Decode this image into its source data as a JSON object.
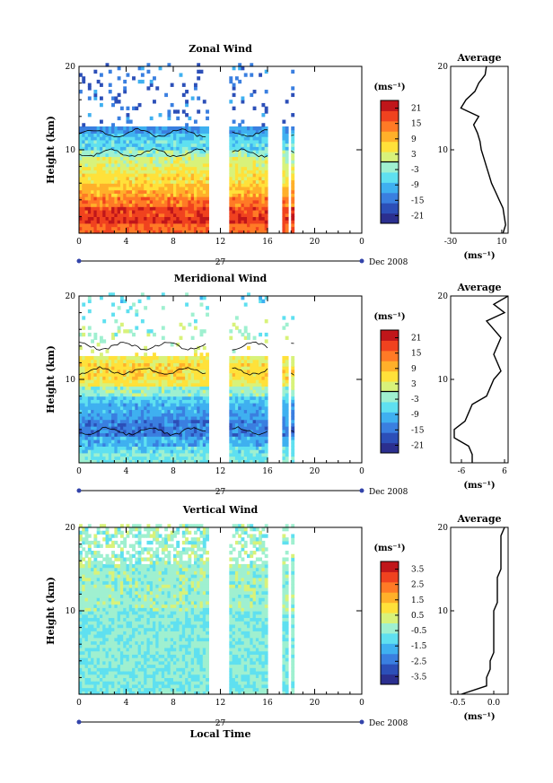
{
  "date_label": "Dec 2008",
  "day_label": "27",
  "xaxis_title": "Local Time",
  "units_label": "(ms⁻¹)",
  "ylabel": "Height (km)",
  "avg_title": "Average",
  "chart_data": [
    {
      "type": "heatmap",
      "title": "Zonal Wind",
      "xlabel": "Local Time",
      "ylabel": "Height (km)",
      "xlim": [
        0,
        24
      ],
      "ylim": [
        0,
        20
      ],
      "x_ticks": [
        "0",
        "4",
        "8",
        "12",
        "16",
        "20",
        "0"
      ],
      "y_ticks": [
        "10",
        "20"
      ],
      "colorbar": {
        "label": "(ms⁻¹)",
        "range": [
          -24,
          24
        ],
        "ticks": [
          "21",
          "15",
          "9",
          "3",
          "-3",
          "-9",
          "-15",
          "-21"
        ],
        "zero_contour": true
      },
      "data_gaps_hours": [
        [
          10.9,
          12.8
        ],
        [
          16.1,
          17.3
        ],
        [
          17.7,
          17.9
        ],
        [
          18.3,
          24
        ]
      ],
      "profile": {
        "title": "Average",
        "xlabel": "(ms⁻¹)",
        "xlim": [
          -30,
          15
        ],
        "x_ticks": [
          "-30",
          "10"
        ],
        "y_ticks": [
          "10",
          "20"
        ],
        "height_km": [
          0,
          1,
          2,
          3,
          4,
          5,
          6,
          7,
          8,
          9,
          10,
          11,
          12,
          13,
          14,
          15,
          16,
          17,
          18,
          19,
          20
        ],
        "value_ms": [
          11,
          13,
          12,
          11,
          8,
          5,
          2,
          0,
          -2,
          -4,
          -6,
          -7,
          -9,
          -12,
          -8,
          -22,
          -18,
          -11,
          -8,
          -3,
          -2
        ]
      }
    },
    {
      "type": "heatmap",
      "title": "Meridional Wind",
      "xlabel": "Local Time",
      "ylabel": "Height (km)",
      "xlim": [
        0,
        24
      ],
      "ylim": [
        0,
        20
      ],
      "x_ticks": [
        "0",
        "4",
        "8",
        "12",
        "16",
        "20",
        "0"
      ],
      "y_ticks": [
        "10",
        "20"
      ],
      "colorbar": {
        "label": "(ms⁻¹)",
        "range": [
          -24,
          24
        ],
        "ticks": [
          "21",
          "15",
          "9",
          "3",
          "-3",
          "-9",
          "-15",
          "-21"
        ],
        "zero_contour": true
      },
      "data_gaps_hours": [
        [
          10.9,
          12.8
        ],
        [
          16.1,
          17.3
        ],
        [
          17.7,
          17.9
        ],
        [
          18.3,
          24
        ]
      ],
      "profile": {
        "title": "Average",
        "xlabel": "(ms⁻¹)",
        "xlim": [
          -9,
          7
        ],
        "x_ticks": [
          "-6",
          "6"
        ],
        "y_ticks": [
          "10",
          "20"
        ],
        "height_km": [
          0,
          1,
          2,
          3,
          4,
          5,
          6,
          7,
          8,
          9,
          10,
          11,
          12,
          13,
          14,
          15,
          16,
          17,
          18,
          19,
          20
        ],
        "value_ms": [
          -3,
          -3,
          -4,
          -8,
          -8,
          -5,
          -4,
          -3,
          1,
          2,
          3,
          5,
          4,
          3,
          4,
          5,
          3,
          1,
          6,
          3,
          7
        ]
      }
    },
    {
      "type": "heatmap",
      "title": "Vertical Wind",
      "xlabel": "Local Time",
      "ylabel": "Height (km)",
      "xlim": [
        0,
        24
      ],
      "ylim": [
        0,
        20
      ],
      "x_ticks": [
        "0",
        "4",
        "8",
        "12",
        "16",
        "20",
        "0"
      ],
      "y_ticks": [
        "10",
        "20"
      ],
      "colorbar": {
        "label": "(ms⁻¹)",
        "range": [
          -4,
          4
        ],
        "ticks": [
          "3.5",
          "2.5",
          "1.5",
          "0.5",
          "-0.5",
          "-1.5",
          "-2.5",
          "-3.5"
        ],
        "zero_contour": false
      },
      "data_gaps_hours": [
        [
          10.9,
          12.8
        ],
        [
          16.1,
          17.3
        ],
        [
          17.7,
          17.9
        ],
        [
          18.3,
          24
        ]
      ],
      "profile": {
        "title": "Average",
        "xlabel": "(ms⁻¹)",
        "xlim": [
          -0.6,
          0.2
        ],
        "x_ticks": [
          "-0.5",
          "0.0"
        ],
        "y_ticks": [
          "10",
          "20"
        ],
        "height_km": [
          0,
          1,
          2,
          3,
          4,
          5,
          6,
          7,
          8,
          9,
          10,
          11,
          12,
          13,
          14,
          15,
          16,
          17,
          18,
          19,
          20
        ],
        "value_ms": [
          -0.45,
          -0.1,
          -0.1,
          -0.05,
          -0.05,
          0.0,
          0.0,
          0.0,
          0.0,
          0.0,
          0.0,
          0.05,
          0.05,
          0.05,
          0.05,
          0.1,
          0.1,
          0.1,
          0.1,
          0.1,
          0.15
        ]
      }
    }
  ],
  "colors": {
    "colormap": [
      "#2b2f8f",
      "#2c4fb8",
      "#3a7fe0",
      "#3fb0f0",
      "#5fe0f0",
      "#9ff0d0",
      "#d8f27a",
      "#ffe13a",
      "#ffb02a",
      "#ff7a26",
      "#f0421f",
      "#c0161a"
    ],
    "axis": "#000000",
    "marker": "#3344aa"
  }
}
